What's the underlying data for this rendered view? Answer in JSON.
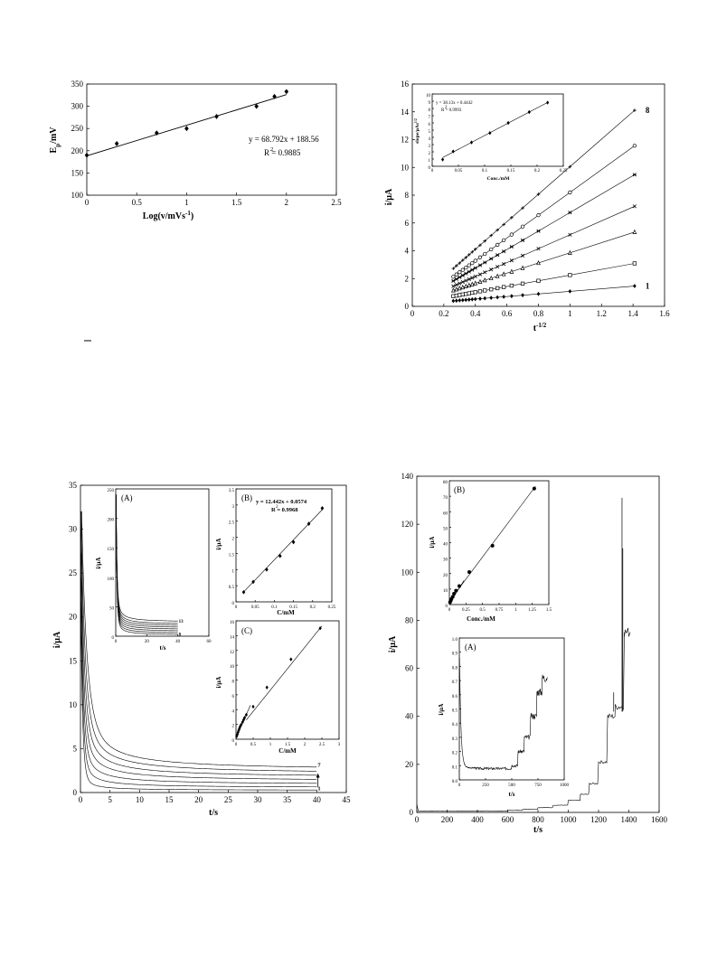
{
  "chart_data": [
    {
      "id": "chart1",
      "type": "scatter",
      "xlabel": "Log(v/mVs",
      "xlabel_sup": "-1",
      "xlabel_tail": ")",
      "ylabel": "E",
      "ylabel_sub": "p",
      "ylabel_tail": "/mV",
      "xlim": [
        0,
        2.5
      ],
      "ylim": [
        100,
        350
      ],
      "xticks": [
        0,
        0.5,
        1,
        1.5,
        2,
        2.5
      ],
      "xtick_labels": [
        "0",
        "0.5",
        "1",
        "1.5",
        "2",
        "2.5"
      ],
      "yticks": [
        100,
        150,
        200,
        250,
        300,
        350
      ],
      "ytick_labels": [
        "100",
        "150",
        "200",
        "250",
        "300",
        "350"
      ],
      "x": [
        0,
        0.3,
        0.7,
        1.0,
        1.3,
        1.7,
        1.88,
        2.0
      ],
      "y": [
        190,
        216,
        240,
        250,
        277,
        300,
        322,
        333
      ],
      "fit": {
        "slope": 68.792,
        "intercept": 188.56
      },
      "equation": "y = 68.792x + 188.56",
      "r2_label": "R",
      "r2_value": " = 0.9885"
    },
    {
      "id": "chart2",
      "type": "scatter",
      "xlabel": "t",
      "xlabel_sup": "-1/2",
      "ylabel": "i/µA",
      "xlim": [
        0,
        1.6
      ],
      "ylim": [
        0,
        16
      ],
      "xticks": [
        0,
        0.2,
        0.4,
        0.6,
        0.8,
        1,
        1.2,
        1.4,
        1.6
      ],
      "xtick_labels": [
        "0",
        "0.2",
        "0.4",
        "0.6",
        "0.8",
        "1",
        "1.2",
        "1.4",
        "1.6"
      ],
      "yticks": [
        0,
        2,
        4,
        6,
        8,
        10,
        12,
        14,
        16
      ],
      "ytick_labels": [
        "0",
        "2",
        "4",
        "6",
        "8",
        "10",
        "12",
        "14",
        "16"
      ],
      "series": [
        {
          "marker": "diamond",
          "slope": 0.93,
          "intercept": 0.15
        },
        {
          "marker": "square",
          "slope": 2.05,
          "intercept": 0.2
        },
        {
          "marker": "triangle",
          "slope": 3.65,
          "intercept": 0.2
        },
        {
          "marker": "x",
          "slope": 5.0,
          "intercept": 0.15
        },
        {
          "marker": "star",
          "slope": 6.65,
          "intercept": 0.1
        },
        {
          "marker": "circle",
          "slope": 8.2,
          "intercept": 0.0
        },
        {
          "marker": "plus",
          "slope": 9.9,
          "intercept": 0.15
        }
      ],
      "t_values": [
        0.26,
        0.28,
        0.3,
        0.32,
        0.34,
        0.36,
        0.38,
        0.4,
        0.43,
        0.46,
        0.5,
        0.54,
        0.58,
        0.63,
        0.7,
        0.8,
        1.0,
        1.41
      ],
      "curve_labels": [
        {
          "text": "8",
          "series": 6
        },
        {
          "text": "1",
          "series": 0
        }
      ],
      "inset": {
        "xlabel": "Conc./mM",
        "ylabel": "slope/µAs",
        "ylabel_sup": "1/2",
        "xlim": [
          0,
          0.25
        ],
        "ylim": [
          0,
          10
        ],
        "xticks": [
          0,
          0.05,
          0.1,
          0.15,
          0.2,
          0.25
        ],
        "xtick_labels": [
          "0",
          "0.05",
          "0.1",
          "0.15",
          "0.2",
          "0.25"
        ],
        "yticks": [
          0,
          1,
          2,
          3,
          4,
          5,
          6,
          7,
          8,
          9,
          10
        ],
        "ytick_labels": [
          "0",
          "1",
          "2",
          "3",
          "4",
          "5",
          "6",
          "7",
          "8",
          "9",
          "10"
        ],
        "x": [
          0.02,
          0.04,
          0.075,
          0.11,
          0.145,
          0.185,
          0.22
        ],
        "y": [
          0.93,
          2.05,
          3.3,
          4.6,
          6.0,
          7.5,
          8.8
        ],
        "fit": {
          "slope": 38.13,
          "intercept": 0.4442
        },
        "equation": "y = 38.13x + 0.4442",
        "r2_label": "R",
        "r2_value": " = 0.9993"
      }
    },
    {
      "id": "chart3",
      "type": "line",
      "xlabel": "t/s",
      "ylabel": "i/µA",
      "xlim": [
        0,
        45
      ],
      "ylim": [
        0,
        35
      ],
      "xticks": [
        0,
        5,
        10,
        15,
        20,
        25,
        30,
        35,
        40,
        45
      ],
      "xtick_labels": [
        "0",
        "5",
        "10",
        "15",
        "20",
        "25",
        "30",
        "35",
        "40",
        "45"
      ],
      "yticks": [
        0,
        5,
        10,
        15,
        20,
        25,
        30,
        35
      ],
      "ytick_labels": [
        "0",
        "5",
        "10",
        "15",
        "20",
        "25",
        "30",
        "35"
      ],
      "curves": [
        {
          "steady": 0.25,
          "peak": 32
        },
        {
          "steady": 0.55,
          "peak": 32
        },
        {
          "steady": 0.9,
          "peak": 32
        },
        {
          "steady": 1.3,
          "peak": 32
        },
        {
          "steady": 1.7,
          "peak": 32
        },
        {
          "steady": 2.1,
          "peak": 32
        },
        {
          "steady": 2.5,
          "peak": 32
        }
      ],
      "curve_labels": [
        {
          "text": "7",
          "curve": 6
        },
        {
          "text": "1",
          "curve": 0
        }
      ],
      "insetA": {
        "label": "(A)",
        "xlabel": "t/s",
        "ylabel": "i/µA",
        "xlim": [
          0,
          60
        ],
        "ylim": [
          0,
          250
        ],
        "xticks": [
          0,
          20,
          40,
          60
        ],
        "xtick_labels": [
          "0",
          "20",
          "40",
          "60"
        ],
        "yticks": [
          0,
          50,
          100,
          150,
          200,
          250
        ],
        "ytick_labels": [
          "0",
          "50",
          "100",
          "150",
          "200",
          "250"
        ],
        "steady": [
          2,
          5,
          8,
          11,
          14,
          17,
          20,
          24
        ],
        "curve_labels": [
          {
            "text": "13",
            "curve": 7
          },
          {
            "text": "8",
            "curve": 0
          }
        ]
      },
      "insetB": {
        "label": "(B)",
        "xlabel": "C/mM",
        "ylabel": "i/µA",
        "xlim": [
          0,
          0.25
        ],
        "ylim": [
          0,
          3.5
        ],
        "xticks": [
          0,
          0.05,
          0.1,
          0.15,
          0.2,
          0.25
        ],
        "xtick_labels": [
          "0",
          "0.05",
          "0.1",
          "0.15",
          "0.2",
          "0.25"
        ],
        "yticks": [
          0,
          0.5,
          1,
          1.5,
          2,
          2.5,
          3,
          3.5
        ],
        "ytick_labels": [
          "0",
          "0.5",
          "1",
          "1.5",
          "2",
          "2.5",
          "3",
          "3.5"
        ],
        "x": [
          0.02,
          0.045,
          0.08,
          0.115,
          0.15,
          0.19,
          0.225
        ],
        "y": [
          0.3,
          0.62,
          1.0,
          1.42,
          1.85,
          2.42,
          2.9
        ],
        "fit": {
          "slope": 12.442,
          "intercept": 0.0574
        },
        "equation": "y = 12.442x + 0.0574",
        "r2_label": "R",
        "r2_value": " = 0.9968"
      },
      "insetC": {
        "label": "(C)",
        "xlabel": "C/mM",
        "ylabel": "i/µA",
        "xlim": [
          0,
          3
        ],
        "ylim": [
          0,
          16
        ],
        "xticks": [
          0,
          0.5,
          1,
          1.5,
          2,
          2.5,
          3
        ],
        "xtick_labels": [
          "0",
          "0.5",
          "1",
          "1.5",
          "2",
          "2.5",
          "3"
        ],
        "yticks": [
          0,
          2,
          4,
          6,
          8,
          10,
          12,
          14,
          16
        ],
        "ytick_labels": [
          "0",
          "2",
          "4",
          "6",
          "8",
          "10",
          "12",
          "14",
          "16"
        ],
        "x": [
          0.02,
          0.04,
          0.06,
          0.08,
          0.1,
          0.12,
          0.15,
          0.19,
          0.22,
          0.25,
          0.3,
          0.5,
          0.9,
          1.6,
          2.45
        ],
        "y": [
          0.4,
          0.65,
          0.95,
          1.2,
          1.45,
          1.7,
          1.95,
          2.3,
          2.6,
          2.9,
          3.3,
          4.4,
          7.0,
          10.8,
          15.0
        ]
      }
    },
    {
      "id": "chart4",
      "type": "line",
      "xlabel": "t/s",
      "ylabel": "i/µA",
      "xlim": [
        0,
        1600
      ],
      "ylim": [
        0,
        140
      ],
      "xticks": [
        0,
        200,
        400,
        600,
        800,
        1000,
        1200,
        1400,
        1600
      ],
      "xtick_labels": [
        "0",
        "200",
        "400",
        "600",
        "800",
        "1000",
        "1200",
        "1400",
        "1600"
      ],
      "yticks": [
        0,
        20,
        40,
        60,
        80,
        100,
        120,
        140
      ],
      "ytick_labels": [
        "0",
        "20",
        "40",
        "60",
        "80",
        "100",
        "120",
        "140"
      ],
      "steps": [
        {
          "t": 0,
          "i": 0.6
        },
        {
          "t": 600,
          "i": 0.9
        },
        {
          "t": 700,
          "i": 1.3
        },
        {
          "t": 800,
          "i": 2.0
        },
        {
          "t": 900,
          "i": 3.0
        },
        {
          "t": 1000,
          "i": 5.0
        },
        {
          "t": 1080,
          "i": 7.5
        },
        {
          "t": 1140,
          "i": 12.0
        },
        {
          "t": 1200,
          "i": 21.0
        },
        {
          "t": 1260,
          "i": 40.0
        },
        {
          "t": 1310,
          "i": 44.0
        },
        {
          "t": 1370,
          "i": 75.0
        },
        {
          "t": 1410,
          "i": 75.0
        }
      ],
      "spikes": [
        {
          "t": 1300,
          "i": 50
        },
        {
          "t": 1355,
          "i": 131
        },
        {
          "t": 1360,
          "i": 110
        }
      ],
      "insetB": {
        "label": "(B)",
        "xlabel": "Conc./mM",
        "ylabel": "i/µA",
        "xlim": [
          0,
          1.5
        ],
        "ylim": [
          0,
          80
        ],
        "xticks": [
          0,
          0.25,
          0.5,
          0.75,
          1,
          1.25,
          1.5
        ],
        "xtick_labels": [
          "0",
          "0.25",
          "0.5",
          "0.75",
          "1",
          "1.25",
          "1.5"
        ],
        "yticks": [
          0,
          10,
          20,
          30,
          40,
          50,
          60,
          70,
          80
        ],
        "ytick_labels": [
          "0",
          "10",
          "20",
          "30",
          "40",
          "50",
          "60",
          "70",
          "80"
        ],
        "x": [
          0.01,
          0.02,
          0.03,
          0.05,
          0.07,
          0.1,
          0.15,
          0.3,
          0.65,
          1.28
        ],
        "y": [
          1.5,
          2.5,
          3.5,
          5.0,
          7.0,
          9.0,
          12.0,
          21.0,
          38.0,
          75.0
        ]
      },
      "insetA": {
        "label": "(A)",
        "xlabel": "t/s",
        "ylabel": "i/µA",
        "xlim": [
          0,
          1000
        ],
        "ylim": [
          0,
          1
        ],
        "xticks": [
          0,
          250,
          500,
          750,
          1000
        ],
        "xtick_labels": [
          "0",
          "250",
          "500",
          "750",
          "1000"
        ],
        "yticks": [
          0,
          0.1,
          0.2,
          0.3,
          0.4,
          0.5,
          0.6,
          0.7,
          0.8,
          0.9,
          1.0
        ],
        "ytick_labels": [
          "0.0",
          "0.1",
          "0.2",
          "0.3",
          "0.4",
          "0.5",
          "0.6",
          "0.7",
          "0.8",
          "0.9",
          "1.0"
        ],
        "steps": [
          {
            "t": 0,
            "i": 0.08
          },
          {
            "t": 500,
            "i": 0.1
          },
          {
            "t": 560,
            "i": 0.2
          },
          {
            "t": 620,
            "i": 0.3
          },
          {
            "t": 680,
            "i": 0.45
          },
          {
            "t": 740,
            "i": 0.62
          },
          {
            "t": 790,
            "i": 0.72
          },
          {
            "t": 840,
            "i": 0.72
          }
        ]
      }
    }
  ]
}
